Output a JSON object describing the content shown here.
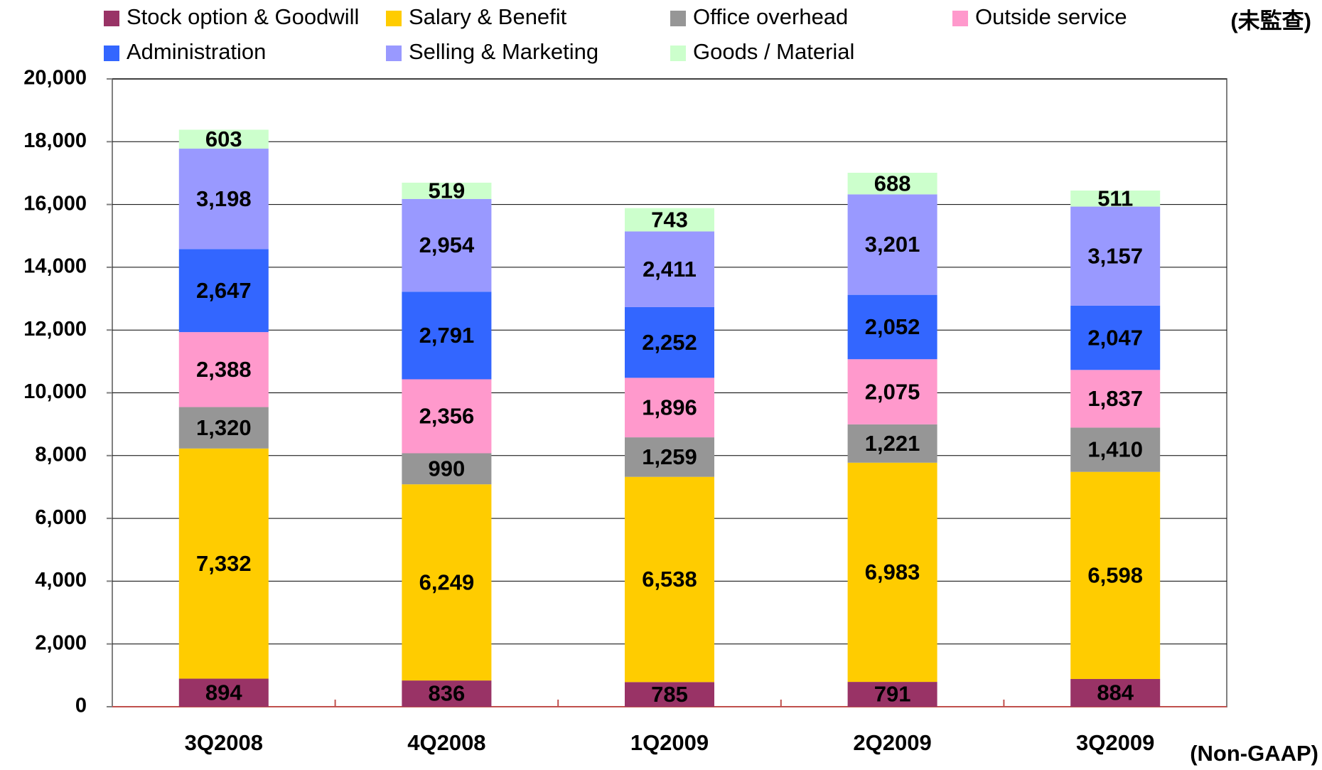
{
  "chart_data": {
    "type": "stacked_bar",
    "annotations": [
      "(未監查)",
      "(Non-GAAP)"
    ],
    "categories": [
      "3Q2008",
      "4Q2008",
      "1Q2009",
      "2Q2009",
      "3Q2009"
    ],
    "series": [
      {
        "name": "Stock option & Goodwill",
        "color": "#993366",
        "values": [
          894,
          836,
          785,
          791,
          884
        ],
        "value_labels": [
          "894",
          "836",
          "785",
          "791",
          "884"
        ]
      },
      {
        "name": "Salary & Benefit",
        "color": "#ffcc00",
        "values": [
          7332,
          6249,
          6538,
          6983,
          6598
        ],
        "value_labels": [
          "7,332",
          "6,249",
          "6,538",
          "6,983",
          "6,598"
        ]
      },
      {
        "name": "Office overhead",
        "color": "#969696",
        "values": [
          1320,
          990,
          1259,
          1221,
          1410
        ],
        "value_labels": [
          "1,320",
          "990",
          "1,259",
          "1,221",
          "1,410"
        ]
      },
      {
        "name": "Outside service",
        "color": "#ff99cc",
        "values": [
          2388,
          2356,
          1896,
          2075,
          1837
        ],
        "value_labels": [
          "2,388",
          "2,356",
          "1,896",
          "2,075",
          "1,837"
        ]
      },
      {
        "name": "Administration",
        "color": "#3366ff",
        "values": [
          2647,
          2791,
          2252,
          2052,
          2047
        ],
        "value_labels": [
          "2,647",
          "2,791",
          "2,252",
          "2,052",
          "2,047"
        ]
      },
      {
        "name": "Selling & Marketing",
        "color": "#9999ff",
        "values": [
          3198,
          2954,
          2411,
          3201,
          3157
        ],
        "value_labels": [
          "3,198",
          "2,954",
          "2,411",
          "3,201",
          "3,157"
        ]
      },
      {
        "name": "Goods / Material",
        "color": "#ccffcc",
        "values": [
          603,
          519,
          743,
          688,
          511
        ],
        "value_labels": [
          "603",
          "519",
          "743",
          "688",
          "511"
        ]
      }
    ],
    "ylim": [
      0,
      20000
    ],
    "yticks": [
      0,
      {
        "value": 2000,
        "label": "2,000"
      },
      {
        "value": 4000,
        "label": "4,000"
      },
      {
        "value": 6000,
        "label": "6,000"
      },
      {
        "value": 8000,
        "label": "8,000"
      },
      {
        "value": 10000,
        "label": "10,000"
      },
      {
        "value": 12000,
        "label": "12,000"
      },
      {
        "value": 14000,
        "label": "14,000"
      },
      {
        "value": 16000,
        "label": "16,000"
      },
      {
        "value": 18000,
        "label": "18,000"
      },
      {
        "value": 20000,
        "label": "20,000"
      }
    ],
    "grid": true
  }
}
